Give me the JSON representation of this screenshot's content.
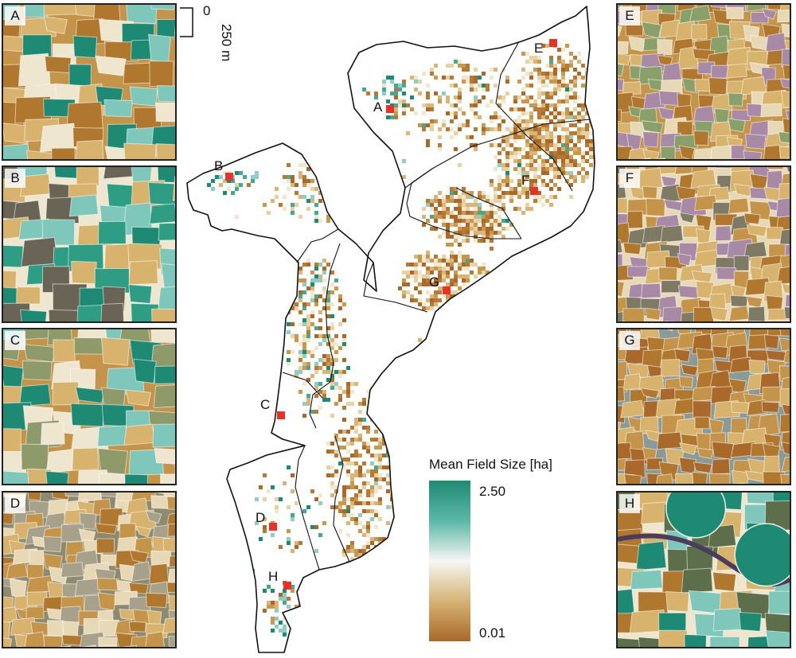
{
  "panels": [
    {
      "id": "A",
      "label": "A",
      "colors": [
        "#1f8a74",
        "#7fc6bb",
        "#d8b36e",
        "#b0772e",
        "#efe6cf",
        "#c4944a"
      ]
    },
    {
      "id": "B",
      "label": "B",
      "colors": [
        "#1f8a74",
        "#2f9c84",
        "#7fc6bb",
        "#d8b36e",
        "#6a6456",
        "#efe6cf"
      ]
    },
    {
      "id": "C",
      "label": "C",
      "colors": [
        "#1f8a74",
        "#7fc6bb",
        "#d8b36e",
        "#8e9a6a",
        "#efe6cf",
        "#c4944a"
      ]
    },
    {
      "id": "D",
      "label": "D",
      "colors": [
        "#b0772e",
        "#d8b36e",
        "#c4944a",
        "#a7a08a",
        "#e8d9b6",
        "#8d8a70"
      ]
    },
    {
      "id": "E",
      "label": "E",
      "colors": [
        "#b0772e",
        "#d8b36e",
        "#8aa06a",
        "#a98aa6",
        "#e8d9b6",
        "#c4944a"
      ]
    },
    {
      "id": "F",
      "label": "F",
      "colors": [
        "#b0772e",
        "#c4944a",
        "#a98aa6",
        "#d8b36e",
        "#7e7a64",
        "#e8d9b6"
      ]
    },
    {
      "id": "G",
      "label": "G",
      "colors": [
        "#a8692a",
        "#b0772e",
        "#c4944a",
        "#d8b36e",
        "#8a9a98"
      ]
    },
    {
      "id": "H",
      "label": "H",
      "colors": [
        "#1f8a74",
        "#b0772e",
        "#d8b36e",
        "#7fc6bb",
        "#5c6f4a",
        "#efe6cf"
      ]
    }
  ],
  "scale": {
    "zero": "0",
    "length": "250 m"
  },
  "map": {
    "site_markers": [
      "A",
      "B",
      "C",
      "D",
      "E",
      "F",
      "G",
      "H"
    ],
    "marker_color": "#e5332a"
  },
  "legend": {
    "title": "Mean Field Size [ha]",
    "max": "2.50",
    "min": "0.01",
    "colors": [
      "#1f8a74",
      "#5bb7a6",
      "#f6f6f4",
      "#d6b475",
      "#a8692a"
    ]
  }
}
